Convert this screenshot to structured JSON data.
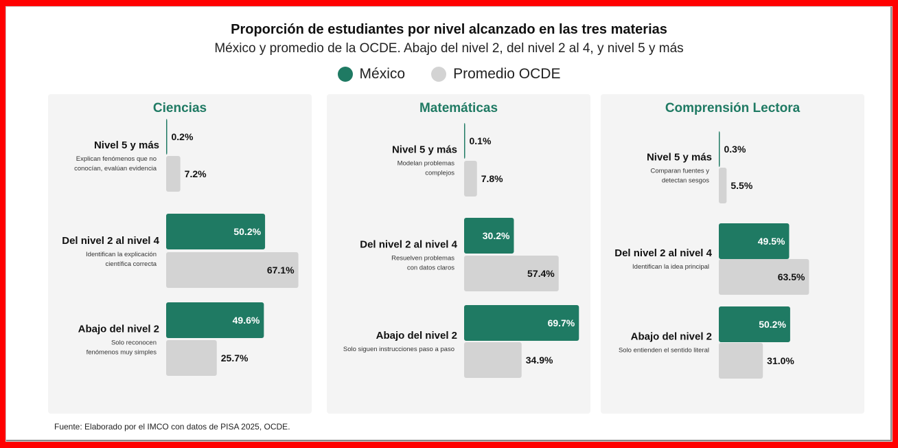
{
  "title": "Proporción de estudiantes por nivel alcanzado en las tres materias",
  "subtitle": "México y promedio de la OCDE. Abajo del nivel 2, del nivel 2 al 4, y nivel 5 y más",
  "legend": {
    "mexico": "México",
    "ocde": "Promedio OCDE"
  },
  "colors": {
    "mexico": "#1f7a63",
    "ocde": "#d3d3d3",
    "title_accent": "#1f7a63"
  },
  "source": "Fuente: Elaborado por el IMCO con datos de PISA 2025, OCDE.",
  "chart_data": [
    {
      "type": "bar",
      "orientation": "horizontal",
      "title": "Ciencias",
      "categories": [
        "Nivel 5 y más",
        "Del nivel 2 al nivel 4",
        "Abajo del nivel 2"
      ],
      "descriptions": [
        [
          "Explican fenómenos que no",
          "conocían, evalúan evidencia"
        ],
        [
          "Identifican la explicación",
          "científica correcta"
        ],
        [
          "Solo reconocen",
          "fenómenos muy simples"
        ]
      ],
      "series": [
        {
          "name": "México",
          "values": [
            0.2,
            50.2,
            49.6
          ]
        },
        {
          "name": "Promedio OCDE",
          "values": [
            7.2,
            67.1,
            25.7
          ]
        }
      ],
      "labels": [
        [
          "0.2%",
          "50.2%",
          "49.6%"
        ],
        [
          "7.2%",
          "67.1%",
          "25.7%"
        ]
      ]
    },
    {
      "type": "bar",
      "orientation": "horizontal",
      "title": "Matemáticas",
      "categories": [
        "Nivel 5 y más",
        "Del nivel 2 al nivel 4",
        "Abajo del nivel 2"
      ],
      "descriptions": [
        [
          "Modelan problemas",
          "complejos"
        ],
        [
          "Resuelven problemas",
          "con datos claros"
        ],
        [
          "Solo siguen instrucciones paso a paso"
        ]
      ],
      "series": [
        {
          "name": "México",
          "values": [
            0.1,
            30.2,
            69.7
          ]
        },
        {
          "name": "Promedio OCDE",
          "values": [
            7.8,
            57.4,
            34.9
          ]
        }
      ],
      "labels": [
        [
          "0.1%",
          "30.2%",
          "69.7%"
        ],
        [
          "7.8%",
          "57.4%",
          "34.9%"
        ]
      ]
    },
    {
      "type": "bar",
      "orientation": "horizontal",
      "title": "Comprensión Lectora",
      "categories": [
        "Nivel 5 y más",
        "Del nivel 2 al nivel 4",
        "Abajo del nivel 2"
      ],
      "descriptions": [
        [
          "Comparan fuentes y",
          "detectan sesgos"
        ],
        [
          "Identifican la idea principal"
        ],
        [
          "Solo entienden el sentido literal"
        ]
      ],
      "series": [
        {
          "name": "México",
          "values": [
            0.3,
            49.5,
            50.2
          ]
        },
        {
          "name": "Promedio OCDE",
          "values": [
            5.5,
            63.5,
            31.0
          ]
        }
      ],
      "labels": [
        [
          "0.3%",
          "49.5%",
          "50.2%"
        ],
        [
          "5.5%",
          "63.5%",
          "31.0%"
        ]
      ]
    }
  ]
}
